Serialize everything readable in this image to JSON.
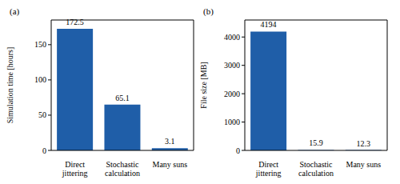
{
  "chart_data": [
    {
      "type": "bar",
      "title": "(a)",
      "y_label": "Simulation time [hours]",
      "categories": [
        "Direct jittering",
        "Stochastic calculation",
        "Many suns"
      ],
      "values": [
        172.5,
        65.1,
        3.1
      ],
      "color": "#1f5ea8",
      "ylim": [
        0,
        185
      ],
      "yticks": [
        0,
        50,
        100,
        150
      ],
      "data_labels": true
    },
    {
      "type": "bar",
      "title": "(b)",
      "y_label": "File size [MB]",
      "categories": [
        "Direct jittering",
        "Stochastic calculation",
        "Many suns"
      ],
      "values": [
        4194,
        15.9,
        12.3
      ],
      "color": "#1f5ea8",
      "ylim": [
        0,
        4600
      ],
      "yticks": [
        0,
        1000,
        2000,
        3000,
        4000
      ],
      "data_labels": true
    }
  ]
}
